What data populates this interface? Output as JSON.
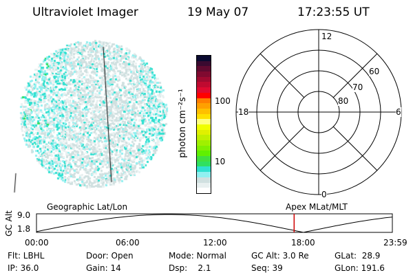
{
  "header": {
    "instrument": "Ultraviolet Imager",
    "date": "19 May 07",
    "time": "17:23:55 UT"
  },
  "colorbar": {
    "label": "photon cm⁻²s⁻¹",
    "ticks": [
      "100",
      "10"
    ],
    "colors": [
      "#0a0a30",
      "#3a0a30",
      "#600a30",
      "#800a30",
      "#a00a30",
      "#c00a30",
      "#e00a30",
      "#ff0000",
      "#ff7f00",
      "#ffa000",
      "#ffc000",
      "#ffe000",
      "#ffff80",
      "#f0ff00",
      "#e0f000",
      "#c0f000",
      "#a0f000",
      "#80f000",
      "#60f000",
      "#40e040",
      "#30e060",
      "#30e0d0",
      "#90f0f0",
      "#d0e0e0",
      "#e8f0f0",
      "#ffffff"
    ]
  },
  "polar": {
    "labels": {
      "top": "12",
      "bottom": "0",
      "left": "18",
      "right": "6"
    },
    "rings": [
      "80",
      "70",
      "60"
    ]
  },
  "timeline": {
    "left_label": "Geographic Lat/Lon",
    "right_label": "Apex MLat/MLT",
    "y_axis": "GC Alt",
    "y_ticks": [
      "9.0",
      "1.8"
    ],
    "x_ticks": [
      "00:00",
      "06:00",
      "12:00",
      "18:00",
      "23:59"
    ],
    "current_fraction": 0.724,
    "marker_color": "#d00000"
  },
  "status": {
    "row1": [
      "Flt: LBHL",
      "Door: Open",
      "Mode: Normal",
      "GC Alt: 3.0 Re",
      "GLat:  28.9"
    ],
    "row2": [
      "IP: 36.0",
      "Gain: 14",
      "Dsp:    2.1",
      "Seq: 39",
      "GLon: 191.6"
    ]
  }
}
